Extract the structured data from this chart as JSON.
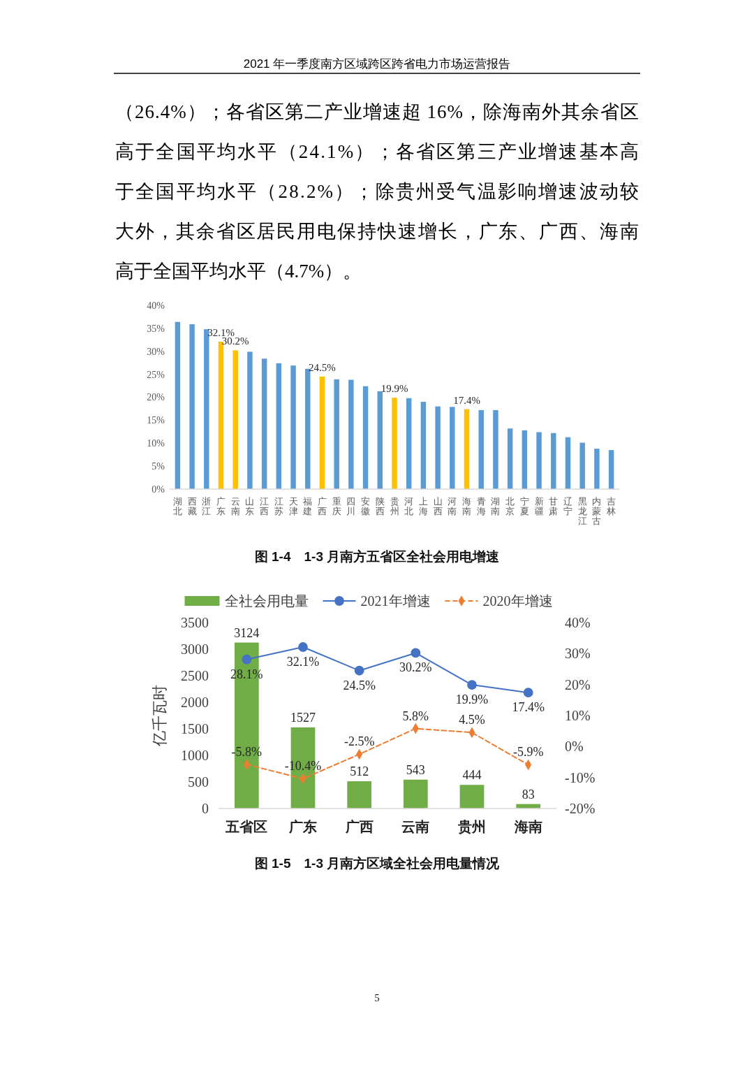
{
  "chart_data": [
    {
      "type": "other",
      "title": "2021 年一季度南方区域跨区跨省电力市场运营报告",
      "annotations": [
        "（26.4%）；各省区第二产业增速超 16%，除海南外其余省区",
        "高于全国平均水平（24.1%）；各省区第三产业增速基本高",
        "于全国平均水平（28.2%）；除贵州受气温影响增速波动较",
        "大外，其余省区居民用电保持快速增长，广东、广西、海南",
        "高于全国平均水平（4.7%）。"
      ]
    },
    {
      "type": "bar",
      "title": "图 1-4　1-3 月南方五省区全社会用电增速",
      "categories": [
        "湖北",
        "西藏",
        "浙江",
        "广东",
        "云南",
        "山东",
        "江西",
        "江苏",
        "天津",
        "福建",
        "广西",
        "重庆",
        "四川",
        "安徽",
        "陕西",
        "贵州",
        "河北",
        "上海",
        "山西",
        "河南",
        "海南",
        "青海",
        "湖南",
        "北京",
        "宁夏",
        "新疆",
        "甘肃",
        "辽宁",
        "黑龙江",
        "内蒙古",
        "吉林"
      ],
      "values": [
        36.4,
        35.9,
        34.8,
        32.1,
        30.2,
        29.9,
        28.4,
        27.4,
        26.9,
        26.2,
        24.5,
        23.9,
        23.8,
        22.4,
        21.3,
        19.9,
        19.8,
        19,
        18,
        17.9,
        17.4,
        17.2,
        17.2,
        13.2,
        12.8,
        12.4,
        12.2,
        11.3,
        10.1,
        8.8,
        8.5
      ],
      "colors": [
        "#5b9bd5",
        "#5b9bd5",
        "#5b9bd5",
        "#ffc000",
        "#ffc000",
        "#5b9bd5",
        "#5b9bd5",
        "#5b9bd5",
        "#5b9bd5",
        "#5b9bd5",
        "#ffc000",
        "#5b9bd5",
        "#5b9bd5",
        "#5b9bd5",
        "#5b9bd5",
        "#ffc000",
        "#5b9bd5",
        "#5b9bd5",
        "#5b9bd5",
        "#5b9bd5",
        "#ffc000",
        "#5b9bd5",
        "#5b9bd5",
        "#5b9bd5",
        "#5b9bd5",
        "#5b9bd5",
        "#5b9bd5",
        "#5b9bd5",
        "#5b9bd5",
        "#5b9bd5",
        "#5b9bd5"
      ],
      "value_labels": [
        null,
        null,
        null,
        "32.1%",
        "30.2%",
        null,
        null,
        null,
        null,
        null,
        "24.5%",
        null,
        null,
        null,
        null,
        "19.9%",
        null,
        null,
        null,
        null,
        "17.4%",
        null,
        null,
        null,
        null,
        null,
        null,
        null,
        null,
        null,
        null
      ],
      "ylim": [
        0,
        40
      ],
      "yticks": [
        {
          "value": 0,
          "label": "0%"
        },
        {
          "value": 5,
          "label": "5%"
        },
        {
          "value": 10,
          "label": "10%"
        },
        {
          "value": 15,
          "label": "15%"
        },
        {
          "value": 20,
          "label": "20%"
        },
        {
          "value": 25,
          "label": "25%"
        },
        {
          "value": 30,
          "label": "30%"
        },
        {
          "value": 35,
          "label": "35%"
        },
        {
          "value": 40,
          "label": "40%"
        }
      ]
    },
    {
      "type": "bar",
      "title": "图 1-5　1-3 月南方区域全社会用电量情况",
      "ylabel": "亿千瓦时",
      "categories": [
        "五省区",
        "广东",
        "广西",
        "云南",
        "贵州",
        "海南"
      ],
      "series": [
        {
          "name": "全社会用电量",
          "type": "bar",
          "color": "#70ad47",
          "values": [
            3124,
            1527,
            512,
            543,
            444,
            83
          ],
          "value_labels": [
            "3124",
            "1527",
            "512",
            "543",
            "444",
            "83"
          ]
        },
        {
          "name": "2021年增速",
          "type": "line",
          "axis": "y2",
          "color": "#4472c4",
          "marker": "circle",
          "line_style": "solid",
          "values": [
            28.1,
            32.1,
            24.5,
            30.2,
            19.9,
            17.4
          ],
          "value_labels": [
            "28.1%",
            "32.1%",
            "24.5%",
            "30.2%",
            "19.9%",
            "17.4%"
          ]
        },
        {
          "name": "2020年增速",
          "type": "line",
          "axis": "y2",
          "color": "#ed7d31",
          "marker": "diamond",
          "line_style": "dashed",
          "values": [
            -5.8,
            -10.4,
            -2.5,
            5.8,
            4.5,
            -5.9
          ],
          "value_labels": [
            "-5.8%",
            "-10.4%",
            "-2.5%",
            "5.8%",
            "4.5%",
            "-5.9%"
          ]
        }
      ],
      "ylim": [
        0,
        3500
      ],
      "yticks": [
        0,
        500,
        1000,
        1500,
        2000,
        2500,
        3000,
        3500
      ],
      "y2lim": [
        -20,
        40
      ],
      "y2ticks": [
        {
          "value": -20,
          "label": "-20%"
        },
        {
          "value": -10,
          "label": "-10%"
        },
        {
          "value": 0,
          "label": "0%"
        },
        {
          "value": 10,
          "label": "10%"
        },
        {
          "value": 20,
          "label": "20%"
        },
        {
          "value": 30,
          "label": "30%"
        },
        {
          "value": 40,
          "label": "40%"
        }
      ],
      "legend": "top"
    },
    {
      "type": "other",
      "annotations": [
        "5"
      ]
    }
  ]
}
